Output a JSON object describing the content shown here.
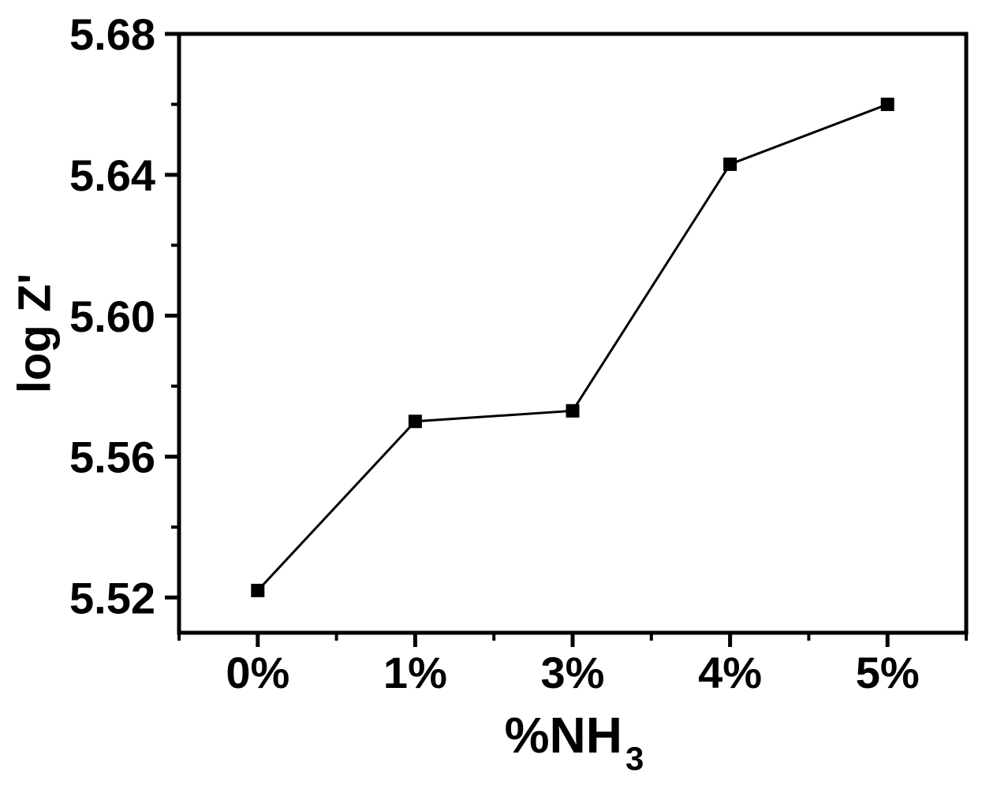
{
  "chart_data": {
    "type": "line",
    "title": "",
    "categories": [
      "0%",
      "1%",
      "3%",
      "4%",
      "5%"
    ],
    "series": [
      {
        "name": "log Z'",
        "values": [
          5.522,
          5.57,
          5.573,
          5.643,
          5.66
        ]
      }
    ],
    "xlabel_main": "%NH",
    "xlabel_sub": "3",
    "ylabel": "log Z'",
    "ylim": [
      5.51,
      5.68
    ],
    "yticks": [
      5.52,
      5.56,
      5.6,
      5.64,
      5.68
    ],
    "ytick_labels": [
      "5.52",
      "5.56",
      "5.60",
      "5.64",
      "5.68"
    ],
    "yminor_ticks": [
      5.54,
      5.58,
      5.62,
      5.66
    ],
    "xminor_between_categories": true,
    "marker": "filled-square",
    "line_color": "#000000",
    "marker_color": "#000000",
    "axis_color": "#000000",
    "text_color": "#000000",
    "background_color": "#ffffff",
    "grid": false,
    "legend": "none"
  }
}
